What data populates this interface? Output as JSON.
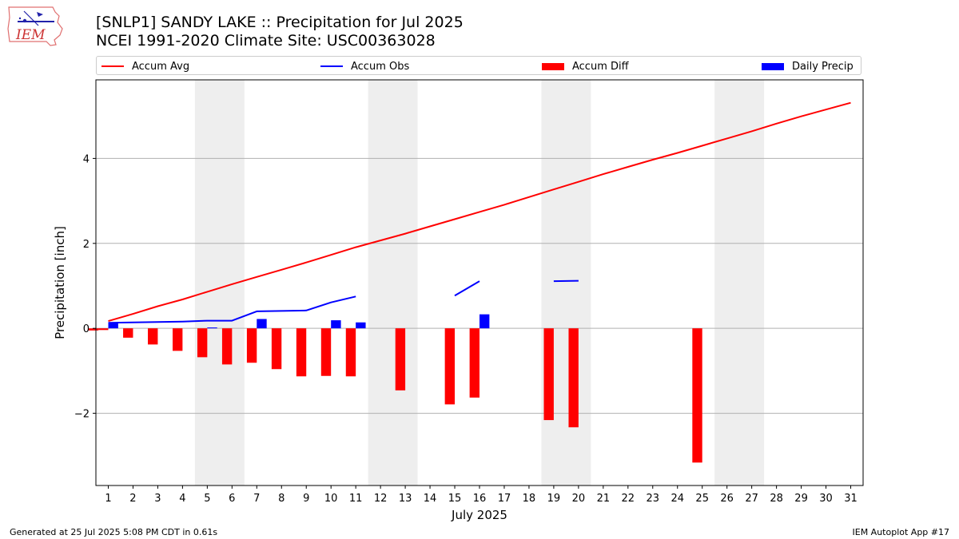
{
  "title_line1": "[SNLP1] SANDY LAKE :: Precipitation for Jul 2025",
  "title_line2": "NCEI 1991-2020 Climate Site: USC00363028",
  "logo_text": "IEM",
  "footer_left": "Generated at 25 Jul 2025 5:08 PM CDT in 0.61s",
  "footer_right": "IEM Autoplot App #17",
  "colors": {
    "accum_avg": "#ff0000",
    "accum_obs": "#0000ff",
    "accum_diff": "#ff0000",
    "daily_precip": "#0000ff",
    "weekend_shade": "#eeeeee",
    "grid": "#b0b0b0"
  },
  "chart_data": {
    "type": "bar",
    "xlabel": "July 2025",
    "ylabel": "Precipitation [inch]",
    "x_ticks": [
      1,
      2,
      3,
      4,
      5,
      6,
      7,
      8,
      9,
      10,
      11,
      12,
      13,
      14,
      15,
      16,
      17,
      18,
      19,
      20,
      21,
      22,
      23,
      24,
      25,
      26,
      27,
      28,
      29,
      30,
      31
    ],
    "xlim": [
      0.5,
      31.5
    ],
    "ylim": [
      -3.7,
      5.85
    ],
    "y_ticks": [
      -2,
      0,
      2,
      4
    ],
    "grid": "horizontal",
    "legend_position": "top",
    "weekend_spans": [
      [
        5,
        6
      ],
      [
        12,
        13
      ],
      [
        19,
        20
      ],
      [
        26,
        27
      ]
    ],
    "series": [
      {
        "name": "Accum Avg",
        "type": "line",
        "x": [
          1,
          2,
          3,
          4,
          5,
          6,
          7,
          8,
          9,
          10,
          11,
          12,
          13,
          14,
          15,
          16,
          17,
          18,
          19,
          20,
          21,
          22,
          23,
          24,
          25,
          26,
          27,
          28,
          29,
          30,
          31
        ],
        "values": [
          0.17,
          0.34,
          0.52,
          0.68,
          0.86,
          1.04,
          1.21,
          1.38,
          1.55,
          1.73,
          1.91,
          2.07,
          2.23,
          2.4,
          2.57,
          2.74,
          2.91,
          3.09,
          3.27,
          3.45,
          3.63,
          3.8,
          3.97,
          4.13,
          4.3,
          4.47,
          4.64,
          4.82,
          4.99,
          5.15,
          5.31
        ]
      },
      {
        "name": "Accum Obs",
        "type": "line",
        "x": [
          1,
          2,
          3,
          4,
          5,
          6,
          7,
          8,
          9,
          10,
          11,
          12,
          13,
          14,
          15,
          16,
          17,
          18,
          19,
          20
        ],
        "values": [
          0.13,
          0.14,
          0.15,
          0.16,
          0.18,
          0.18,
          0.4,
          0.41,
          0.42,
          0.61,
          0.75,
          null,
          null,
          null,
          0.77,
          1.11,
          null,
          null,
          1.11,
          1.12
        ]
      },
      {
        "name": "Accum Diff",
        "type": "bar",
        "x": [
          0.6,
          1,
          2,
          3,
          4,
          5,
          6,
          7,
          8,
          9,
          10,
          11,
          13,
          15,
          16,
          19,
          20,
          25
        ],
        "values": [
          -0.05,
          -0.04,
          -0.22,
          -0.38,
          -0.53,
          -0.68,
          -0.85,
          -0.81,
          -0.96,
          -1.13,
          -1.12,
          -1.13,
          -1.46,
          -1.79,
          -1.63,
          -2.16,
          -2.33,
          -3.16
        ]
      },
      {
        "name": "Daily Precip",
        "type": "bar",
        "x": [
          1,
          5,
          7,
          10,
          11,
          16
        ],
        "values": [
          0.13,
          0.02,
          0.22,
          0.19,
          0.14,
          0.33
        ]
      }
    ]
  }
}
